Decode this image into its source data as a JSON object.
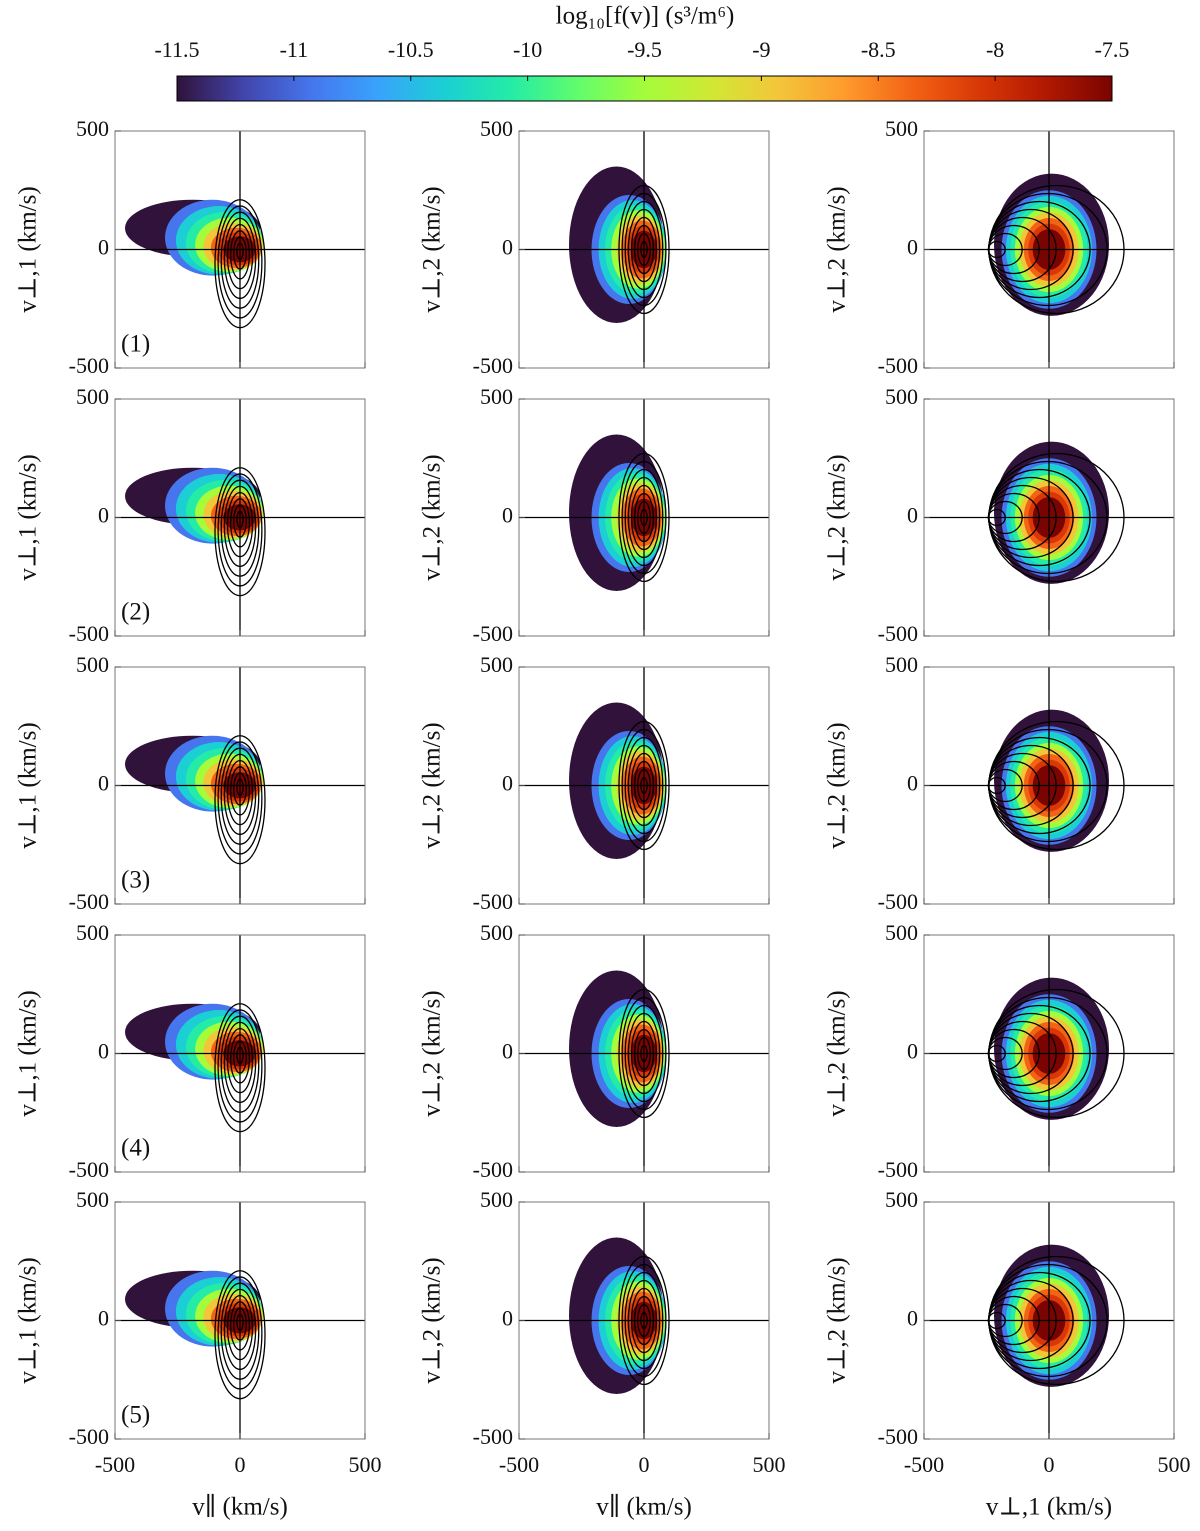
{
  "chart_data": {
    "type": "contour",
    "colorbar": {
      "label": "log₁₀[f(v)] (s³/m⁶)",
      "lim": [
        -11.5,
        -7.5
      ],
      "ticks": [
        -11.5,
        -11,
        -10.5,
        -10,
        -9.5,
        -9,
        -8.5,
        -8,
        -7.5
      ],
      "colors": [
        "#30123b",
        "#4145ab",
        "#4675ed",
        "#39a2fc",
        "#1bcfd4",
        "#24eca6",
        "#61fc6c",
        "#a4fc3b",
        "#d1e834",
        "#f3c63a",
        "#fe9b2d",
        "#f36315",
        "#d93806",
        "#b11901",
        "#7a0402"
      ]
    },
    "rows": [
      "(1)",
      "(2)",
      "(3)",
      "(4)",
      "(5)"
    ],
    "columns": [
      {
        "xlabel": "v∥ (km/s)",
        "ylabel": "v⊥,1 (km/s)"
      },
      {
        "xlabel": "v∥ (km/s)",
        "ylabel": "v⊥,2 (km/s)"
      },
      {
        "xlabel": "v⊥,1 (km/s)",
        "ylabel": "v⊥,2 (km/s)"
      }
    ],
    "xlim": [
      -500,
      500
    ],
    "ylim": [
      -500,
      500
    ],
    "xticks": [
      -500,
      0,
      500
    ],
    "yticks": [
      -500,
      0,
      500
    ]
  }
}
